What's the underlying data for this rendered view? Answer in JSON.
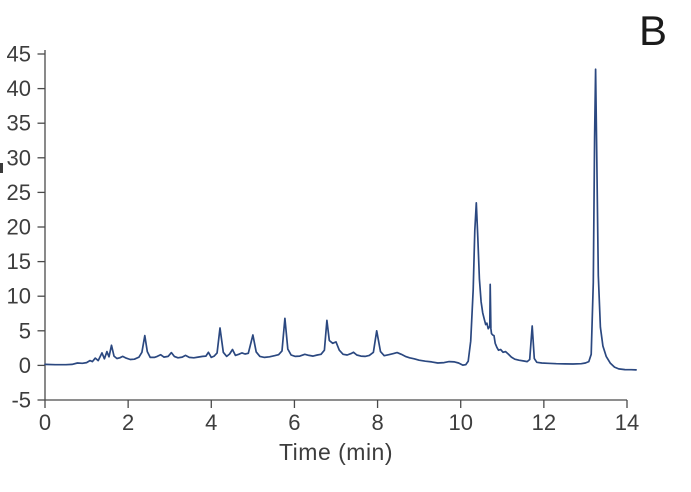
{
  "panel_label": "B",
  "chart_data": {
    "type": "line",
    "title": "",
    "xlabel": "Time (min)",
    "ylabel": "",
    "xlim": [
      0,
      14
    ],
    "ylim": [
      -5,
      45
    ],
    "x_ticks": [
      0,
      2,
      4,
      6,
      8,
      10,
      12,
      14
    ],
    "y_ticks": [
      45,
      40,
      35,
      30,
      25,
      20,
      15,
      10,
      5,
      0,
      -5
    ],
    "grid": false,
    "legend": "none",
    "line_color": "#2b4880",
    "axis_color": "#4a4a4a",
    "tick_label_color": "#3d3d3d",
    "series": [
      {
        "name": "chromatogram-trace",
        "points": [
          [
            0,
            0.15
          ],
          [
            0.25,
            0.1
          ],
          [
            0.5,
            0.1
          ],
          [
            0.65,
            0.15
          ],
          [
            0.78,
            0.35
          ],
          [
            0.9,
            0.3
          ],
          [
            1.0,
            0.4
          ],
          [
            1.08,
            0.7
          ],
          [
            1.14,
            0.55
          ],
          [
            1.21,
            1.05
          ],
          [
            1.28,
            0.7
          ],
          [
            1.37,
            1.8
          ],
          [
            1.43,
            0.95
          ],
          [
            1.49,
            2.0
          ],
          [
            1.54,
            1.25
          ],
          [
            1.6,
            2.9
          ],
          [
            1.66,
            1.35
          ],
          [
            1.73,
            1.0
          ],
          [
            1.8,
            1.1
          ],
          [
            1.87,
            1.3
          ],
          [
            1.95,
            1.05
          ],
          [
            2.05,
            0.85
          ],
          [
            2.15,
            0.9
          ],
          [
            2.26,
            1.2
          ],
          [
            2.33,
            1.9
          ],
          [
            2.4,
            4.3
          ],
          [
            2.46,
            2.0
          ],
          [
            2.53,
            1.15
          ],
          [
            2.63,
            1.15
          ],
          [
            2.7,
            1.3
          ],
          [
            2.78,
            1.55
          ],
          [
            2.86,
            1.2
          ],
          [
            2.96,
            1.3
          ],
          [
            3.04,
            1.85
          ],
          [
            3.11,
            1.3
          ],
          [
            3.2,
            1.1
          ],
          [
            3.3,
            1.2
          ],
          [
            3.38,
            1.45
          ],
          [
            3.47,
            1.15
          ],
          [
            3.58,
            1.1
          ],
          [
            3.68,
            1.2
          ],
          [
            3.79,
            1.3
          ],
          [
            3.87,
            1.35
          ],
          [
            3.93,
            1.9
          ],
          [
            4.0,
            1.15
          ],
          [
            4.07,
            1.35
          ],
          [
            4.14,
            1.8
          ],
          [
            4.21,
            5.4
          ],
          [
            4.29,
            1.9
          ],
          [
            4.37,
            1.3
          ],
          [
            4.44,
            1.65
          ],
          [
            4.51,
            2.3
          ],
          [
            4.58,
            1.45
          ],
          [
            4.66,
            1.6
          ],
          [
            4.74,
            1.8
          ],
          [
            4.81,
            1.65
          ],
          [
            4.89,
            1.75
          ],
          [
            5.0,
            4.4
          ],
          [
            5.08,
            1.95
          ],
          [
            5.17,
            1.3
          ],
          [
            5.28,
            1.15
          ],
          [
            5.4,
            1.25
          ],
          [
            5.52,
            1.4
          ],
          [
            5.62,
            1.55
          ],
          [
            5.7,
            2.1
          ],
          [
            5.77,
            6.8
          ],
          [
            5.84,
            2.35
          ],
          [
            5.92,
            1.5
          ],
          [
            6.02,
            1.3
          ],
          [
            6.13,
            1.35
          ],
          [
            6.25,
            1.6
          ],
          [
            6.35,
            1.45
          ],
          [
            6.45,
            1.35
          ],
          [
            6.55,
            1.5
          ],
          [
            6.64,
            1.6
          ],
          [
            6.72,
            2.2
          ],
          [
            6.78,
            6.5
          ],
          [
            6.84,
            3.6
          ],
          [
            6.92,
            3.2
          ],
          [
            7.0,
            3.4
          ],
          [
            7.08,
            2.2
          ],
          [
            7.17,
            1.6
          ],
          [
            7.27,
            1.5
          ],
          [
            7.36,
            1.7
          ],
          [
            7.42,
            1.9
          ],
          [
            7.5,
            1.5
          ],
          [
            7.6,
            1.35
          ],
          [
            7.7,
            1.3
          ],
          [
            7.8,
            1.45
          ],
          [
            7.9,
            1.9
          ],
          [
            7.98,
            5.0
          ],
          [
            8.07,
            2.0
          ],
          [
            8.16,
            1.4
          ],
          [
            8.27,
            1.55
          ],
          [
            8.38,
            1.7
          ],
          [
            8.47,
            1.85
          ],
          [
            8.57,
            1.6
          ],
          [
            8.67,
            1.3
          ],
          [
            8.77,
            1.1
          ],
          [
            8.88,
            0.95
          ],
          [
            9.0,
            0.75
          ],
          [
            9.15,
            0.6
          ],
          [
            9.3,
            0.5
          ],
          [
            9.45,
            0.35
          ],
          [
            9.6,
            0.4
          ],
          [
            9.72,
            0.55
          ],
          [
            9.85,
            0.5
          ],
          [
            9.95,
            0.35
          ],
          [
            10.05,
            0.05
          ],
          [
            10.12,
            0.1
          ],
          [
            10.18,
            0.6
          ],
          [
            10.24,
            3.5
          ],
          [
            10.3,
            11
          ],
          [
            10.34,
            19.5
          ],
          [
            10.375,
            23.5
          ],
          [
            10.41,
            18.5
          ],
          [
            10.45,
            12.5
          ],
          [
            10.49,
            9.2
          ],
          [
            10.53,
            7.6
          ],
          [
            10.57,
            6.6
          ],
          [
            10.6,
            5.9
          ],
          [
            10.63,
            6.1
          ],
          [
            10.66,
            5.3
          ],
          [
            10.685,
            5.5
          ],
          [
            10.7,
            5.7
          ],
          [
            10.71,
            11.7
          ],
          [
            10.725,
            5.3
          ],
          [
            10.74,
            4.6
          ],
          [
            10.77,
            4.4
          ],
          [
            10.8,
            4.3
          ],
          [
            10.83,
            3.2
          ],
          [
            10.87,
            2.6
          ],
          [
            10.91,
            2.2
          ],
          [
            10.96,
            2.3
          ],
          [
            11.02,
            1.9
          ],
          [
            11.08,
            2.0
          ],
          [
            11.15,
            1.6
          ],
          [
            11.22,
            1.2
          ],
          [
            11.3,
            0.9
          ],
          [
            11.4,
            0.75
          ],
          [
            11.5,
            0.65
          ],
          [
            11.6,
            0.55
          ],
          [
            11.66,
            0.85
          ],
          [
            11.72,
            5.7
          ],
          [
            11.77,
            1.0
          ],
          [
            11.83,
            0.45
          ],
          [
            11.95,
            0.35
          ],
          [
            12.1,
            0.3
          ],
          [
            12.3,
            0.25
          ],
          [
            12.5,
            0.22
          ],
          [
            12.7,
            0.2
          ],
          [
            12.9,
            0.25
          ],
          [
            13.0,
            0.35
          ],
          [
            13.08,
            0.55
          ],
          [
            13.14,
            1.6
          ],
          [
            13.19,
            12
          ],
          [
            13.22,
            33
          ],
          [
            13.245,
            42.8
          ],
          [
            13.27,
            31
          ],
          [
            13.31,
            13
          ],
          [
            13.36,
            5.5
          ],
          [
            13.42,
            2.8
          ],
          [
            13.5,
            1.3
          ],
          [
            13.6,
            0.3
          ],
          [
            13.7,
            -0.25
          ],
          [
            13.8,
            -0.5
          ],
          [
            13.95,
            -0.6
          ],
          [
            14.1,
            -0.62
          ],
          [
            14.22,
            -0.65
          ]
        ]
      }
    ]
  }
}
